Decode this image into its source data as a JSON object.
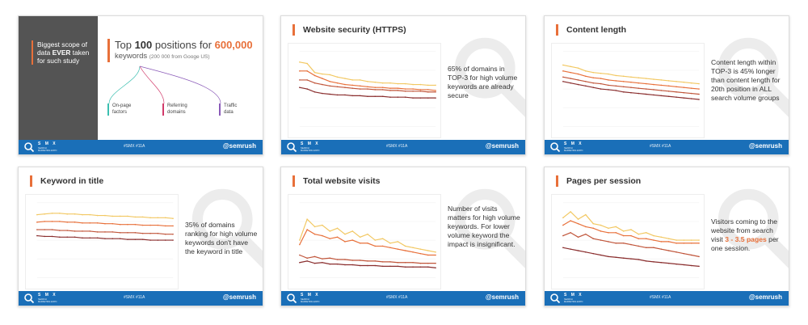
{
  "footer": {
    "brand": "S M X",
    "brand_sub": "SEARCH MARKETING EXPO",
    "hashtag": "#SMX #11A",
    "handle": "@semrush"
  },
  "colors": {
    "accent": "#e8703a",
    "footer_blue": "#1a6fb8",
    "panel_gray": "#545454",
    "series": [
      "#f2c862",
      "#e8703a",
      "#c0553a",
      "#8a2e2e"
    ]
  },
  "slides": [
    {
      "gray_text": {
        "pre": "Biggest scope of data ",
        "bold": "EVER",
        "post": " taken for such study"
      },
      "head": {
        "top": "Top ",
        "num": "100",
        "mid": " positions for ",
        "num2": "600,000",
        "keywords": "keywords",
        "note": "(200 000 from Googe US)"
      },
      "branches": [
        {
          "label": "On-page factors"
        },
        {
          "label": "Referring domains"
        },
        {
          "label": "Traffic data"
        }
      ]
    },
    {
      "title": "Website security (HTTPS)",
      "text": {
        "pre": "65% of domains in TOP-3 for high volume keywords are already secure"
      },
      "chart_data": {
        "type": "line",
        "series": [
          {
            "values": [
              86,
              84,
              72,
              70,
              69,
              66,
              64,
              62,
              62,
              60,
              59,
              58,
              58,
              57,
              57,
              56,
              56,
              55,
              55
            ]
          },
          {
            "values": [
              74,
              74,
              68,
              64,
              60,
              58,
              56,
              55,
              54,
              53,
              52,
              52,
              51,
              51,
              50,
              50,
              49,
              49,
              48
            ]
          },
          {
            "values": [
              62,
              62,
              58,
              56,
              54,
              53,
              52,
              51,
              50,
              50,
              49,
              49,
              48,
              48,
              47,
              47,
              47,
              46,
              46
            ]
          },
          {
            "values": [
              52,
              50,
              46,
              44,
              43,
              42,
              42,
              41,
              41,
              40,
              40,
              40,
              39,
              39,
              39,
              38,
              38,
              38,
              38
            ]
          }
        ]
      }
    },
    {
      "title": "Content length",
      "text": {
        "pre": "Content length within TOP-3 is 45% longer than content length for 20th position in ALL search volume groups"
      },
      "chart_data": {
        "type": "line",
        "series": [
          {
            "values": [
              82,
              80,
              78,
              74,
              72,
              71,
              70,
              68,
              67,
              66,
              65,
              64,
              63,
              62,
              61,
              60,
              59,
              58,
              57
            ]
          },
          {
            "values": [
              74,
              72,
              70,
              67,
              65,
              64,
              62,
              61,
              60,
              59,
              58,
              57,
              56,
              55,
              54,
              53,
              52,
              51,
              50
            ]
          },
          {
            "values": [
              66,
              64,
              62,
              60,
              58,
              57,
              55,
              54,
              53,
              52,
              51,
              50,
              49,
              48,
              47,
              46,
              45,
              44,
              43
            ]
          },
          {
            "values": [
              60,
              58,
              56,
              54,
              52,
              50,
              49,
              48,
              46,
              45,
              44,
              43,
              42,
              41,
              40,
              39,
              38,
              37,
              36
            ]
          }
        ]
      }
    },
    {
      "title": "Keyword in title",
      "text": {
        "pre": "35% of domains ranking for high volume keywords don't have the keyword in title"
      },
      "chart_data": {
        "type": "line",
        "series": [
          {
            "values": [
              84,
              85,
              86,
              86,
              85,
              85,
              84,
              84,
              83,
              83,
              82,
              82,
              82,
              81,
              81,
              80,
              80,
              80,
              79
            ]
          },
          {
            "values": [
              74,
              75,
              75,
              75,
              74,
              74,
              73,
              73,
              73,
              72,
              72,
              71,
              71,
              71,
              70,
              70,
              70,
              69,
              69
            ]
          },
          {
            "values": [
              64,
              64,
              64,
              63,
              63,
              62,
              62,
              62,
              61,
              61,
              61,
              60,
              60,
              60,
              59,
              59,
              59,
              58,
              58
            ]
          },
          {
            "values": [
              56,
              55,
              55,
              54,
              54,
              54,
              53,
              53,
              53,
              52,
              52,
              52,
              51,
              51,
              51,
              50,
              50,
              50,
              50
            ]
          }
        ]
      }
    },
    {
      "title": "Total website visits",
      "text": {
        "pre": "Number of visits matters for high volume keywords. For lower volume keyword the impact is insignificant."
      },
      "chart_data": {
        "type": "line",
        "series": [
          {
            "values": [
              50,
              78,
              68,
              70,
              62,
              66,
              58,
              62,
              54,
              58,
              50,
              52,
              46,
              48,
              42,
              40,
              38,
              36,
              34
            ]
          },
          {
            "values": [
              44,
              64,
              58,
              56,
              52,
              54,
              48,
              50,
              46,
              46,
              42,
              42,
              40,
              38,
              36,
              34,
              32,
              30,
              30
            ]
          },
          {
            "values": [
              30,
              26,
              28,
              25,
              26,
              24,
              24,
              23,
              23,
              22,
              22,
              21,
              21,
              20,
              20,
              20,
              19,
              19,
              19
            ]
          },
          {
            "values": [
              20,
              22,
              19,
              20,
              18,
              18,
              17,
              17,
              16,
              16,
              16,
              15,
              15,
              15,
              14,
              14,
              14,
              14,
              13
            ]
          }
        ]
      }
    },
    {
      "title": "Pages per session",
      "text": {
        "pre": "Visitors coming to the website from search visit ",
        "hl": "3 - 3.5 pages",
        "post": " per one session."
      },
      "chart_data": {
        "type": "line",
        "series": [
          {
            "values": [
              80,
              88,
              78,
              84,
              72,
              70,
              66,
              68,
              62,
              64,
              58,
              60,
              56,
              54,
              52,
              50,
              50,
              50,
              50
            ]
          },
          {
            "values": [
              70,
              76,
              72,
              68,
              66,
              62,
              60,
              60,
              56,
              56,
              52,
              52,
              50,
              48,
              48,
              46,
              46,
              46,
              46
            ]
          },
          {
            "values": [
              56,
              60,
              54,
              58,
              52,
              50,
              48,
              46,
              46,
              44,
              42,
              40,
              40,
              38,
              36,
              34,
              32,
              30,
              28
            ]
          },
          {
            "values": [
              40,
              38,
              36,
              34,
              32,
              30,
              28,
              27,
              26,
              25,
              24,
              22,
              21,
              20,
              19,
              18,
              17,
              16,
              15
            ]
          }
        ]
      }
    }
  ]
}
